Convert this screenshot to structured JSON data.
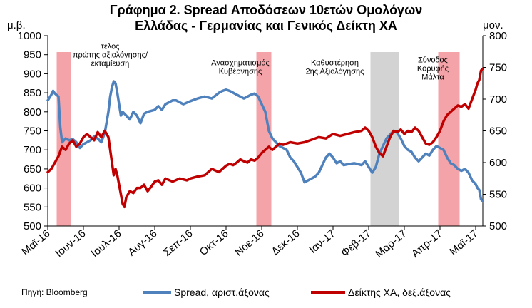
{
  "chart_data": {
    "type": "line",
    "title_lines": [
      "Γράφημα 2. Spread Αποδόσεων 10ετών Ομολόγων",
      "Ελλάδας - Γερμανίας και Γενικός Δείκτη ΧΑ"
    ],
    "left_unit": "μ.β.",
    "right_unit": "μον.",
    "source": "Πηγή: Bloomberg",
    "left_axis": {
      "min": 500,
      "max": 1000,
      "ticks": [
        500,
        550,
        600,
        650,
        700,
        750,
        800,
        850,
        900,
        950,
        1000
      ]
    },
    "right_axis": {
      "min": 500,
      "max": 800,
      "ticks": [
        500,
        550,
        600,
        650,
        700,
        750,
        800
      ]
    },
    "x_range": [
      0,
      12.2
    ],
    "x_ticks": [
      {
        "x": 0.0,
        "label": "Μαϊ-16"
      },
      {
        "x": 1.0,
        "label": "Ιουν-16"
      },
      {
        "x": 2.0,
        "label": "Ιουλ-16"
      },
      {
        "x": 3.0,
        "label": "Αυγ-16"
      },
      {
        "x": 4.0,
        "label": "Σεπ-16"
      },
      {
        "x": 5.0,
        "label": "Οκτ-16"
      },
      {
        "x": 6.0,
        "label": "Νοε-16"
      },
      {
        "x": 7.0,
        "label": "Δεκ-16"
      },
      {
        "x": 8.0,
        "label": "Ιαν-17"
      },
      {
        "x": 9.0,
        "label": "Φεβ-17"
      },
      {
        "x": 10.0,
        "label": "Μαρ-17"
      },
      {
        "x": 11.0,
        "label": "Απρ-17"
      },
      {
        "x": 12.0,
        "label": "Μαϊ-17"
      }
    ],
    "bands": [
      {
        "from": 0.25,
        "to": 0.66,
        "color": "#f4a3a8"
      },
      {
        "from": 5.85,
        "to": 6.27,
        "color": "#f4a3a8"
      },
      {
        "from": 9.05,
        "to": 9.85,
        "color": "#d3d3d3"
      },
      {
        "from": 10.95,
        "to": 11.55,
        "color": "#f4a3a8"
      }
    ],
    "annotations": [
      {
        "lines": [
          "τέλος",
          "πρώτης αξιολόγησης/",
          "εκταμίευση"
        ]
      },
      {
        "lines": [
          "Ανασχηματισμός",
          "Κυβέρνησης"
        ]
      },
      {
        "lines": [
          "Καθυστέρηση",
          "2ης Αξιολόγησης"
        ]
      },
      {
        "lines": [
          "Σύνοδος",
          "Κορυφής",
          "Μάλτα"
        ]
      }
    ],
    "series": [
      {
        "name": "Spread, αριστ.άξονας",
        "axis": "left",
        "color": "#4f81bd",
        "points": [
          [
            0.0,
            830
          ],
          [
            0.1,
            845
          ],
          [
            0.15,
            855
          ],
          [
            0.2,
            848
          ],
          [
            0.3,
            840
          ],
          [
            0.35,
            760
          ],
          [
            0.4,
            720
          ],
          [
            0.5,
            730
          ],
          [
            0.6,
            725
          ],
          [
            0.7,
            728
          ],
          [
            0.8,
            720
          ],
          [
            0.9,
            705
          ],
          [
            1.0,
            715
          ],
          [
            1.1,
            720
          ],
          [
            1.2,
            725
          ],
          [
            1.3,
            735
          ],
          [
            1.4,
            730
          ],
          [
            1.5,
            720
          ],
          [
            1.6,
            745
          ],
          [
            1.7,
            800
          ],
          [
            1.75,
            840
          ],
          [
            1.8,
            865
          ],
          [
            1.85,
            880
          ],
          [
            1.9,
            875
          ],
          [
            1.95,
            850
          ],
          [
            2.0,
            820
          ],
          [
            2.05,
            790
          ],
          [
            2.1,
            800
          ],
          [
            2.2,
            790
          ],
          [
            2.3,
            780
          ],
          [
            2.4,
            800
          ],
          [
            2.5,
            790
          ],
          [
            2.6,
            770
          ],
          [
            2.7,
            795
          ],
          [
            2.8,
            800
          ],
          [
            3.0,
            805
          ],
          [
            3.1,
            815
          ],
          [
            3.2,
            805
          ],
          [
            3.3,
            820
          ],
          [
            3.4,
            825
          ],
          [
            3.5,
            830
          ],
          [
            3.6,
            830
          ],
          [
            3.8,
            820
          ],
          [
            4.0,
            828
          ],
          [
            4.2,
            835
          ],
          [
            4.4,
            840
          ],
          [
            4.6,
            835
          ],
          [
            4.8,
            850
          ],
          [
            4.9,
            855
          ],
          [
            5.0,
            858
          ],
          [
            5.1,
            855
          ],
          [
            5.2,
            850
          ],
          [
            5.3,
            845
          ],
          [
            5.4,
            840
          ],
          [
            5.5,
            835
          ],
          [
            5.6,
            840
          ],
          [
            5.7,
            845
          ],
          [
            5.8,
            848
          ],
          [
            5.9,
            840
          ],
          [
            6.0,
            820
          ],
          [
            6.1,
            800
          ],
          [
            6.15,
            775
          ],
          [
            6.2,
            750
          ],
          [
            6.3,
            730
          ],
          [
            6.4,
            720
          ],
          [
            6.5,
            710
          ],
          [
            6.6,
            705
          ],
          [
            6.7,
            700
          ],
          [
            6.8,
            680
          ],
          [
            6.9,
            670
          ],
          [
            7.0,
            655
          ],
          [
            7.1,
            640
          ],
          [
            7.2,
            615
          ],
          [
            7.3,
            620
          ],
          [
            7.4,
            625
          ],
          [
            7.5,
            630
          ],
          [
            7.6,
            640
          ],
          [
            7.7,
            660
          ],
          [
            7.8,
            680
          ],
          [
            7.9,
            690
          ],
          [
            8.0,
            680
          ],
          [
            8.1,
            665
          ],
          [
            8.2,
            670
          ],
          [
            8.3,
            660
          ],
          [
            8.4,
            662
          ],
          [
            8.6,
            665
          ],
          [
            8.8,
            660
          ],
          [
            8.9,
            670
          ],
          [
            9.0,
            655
          ],
          [
            9.1,
            640
          ],
          [
            9.2,
            655
          ],
          [
            9.3,
            690
          ],
          [
            9.4,
            710
          ],
          [
            9.5,
            730
          ],
          [
            9.6,
            740
          ],
          [
            9.7,
            750
          ],
          [
            9.8,
            745
          ],
          [
            9.9,
            730
          ],
          [
            10.0,
            710
          ],
          [
            10.1,
            700
          ],
          [
            10.2,
            695
          ],
          [
            10.3,
            680
          ],
          [
            10.4,
            670
          ],
          [
            10.5,
            680
          ],
          [
            10.6,
            690
          ],
          [
            10.7,
            685
          ],
          [
            10.8,
            700
          ],
          [
            10.9,
            710
          ],
          [
            11.0,
            705
          ],
          [
            11.1,
            700
          ],
          [
            11.2,
            680
          ],
          [
            11.3,
            665
          ],
          [
            11.4,
            660
          ],
          [
            11.5,
            650
          ],
          [
            11.6,
            645
          ],
          [
            11.7,
            650
          ],
          [
            11.8,
            640
          ],
          [
            11.9,
            620
          ],
          [
            12.0,
            610
          ],
          [
            12.05,
            600
          ],
          [
            12.1,
            595
          ],
          [
            12.15,
            570
          ],
          [
            12.2,
            565
          ]
        ]
      },
      {
        "name": "Δείκτης ΧΑ, δεξ.άξονας",
        "axis": "right",
        "color": "#c00000",
        "points": [
          [
            0.0,
            585
          ],
          [
            0.1,
            590
          ],
          [
            0.2,
            600
          ],
          [
            0.3,
            610
          ],
          [
            0.4,
            625
          ],
          [
            0.5,
            620
          ],
          [
            0.6,
            630
          ],
          [
            0.7,
            635
          ],
          [
            0.8,
            625
          ],
          [
            0.9,
            630
          ],
          [
            1.0,
            640
          ],
          [
            1.1,
            645
          ],
          [
            1.2,
            640
          ],
          [
            1.3,
            635
          ],
          [
            1.4,
            648
          ],
          [
            1.5,
            640
          ],
          [
            1.6,
            650
          ],
          [
            1.7,
            640
          ],
          [
            1.75,
            620
          ],
          [
            1.8,
            600
          ],
          [
            1.85,
            580
          ],
          [
            1.9,
            590
          ],
          [
            1.95,
            580
          ],
          [
            2.0,
            565
          ],
          [
            2.05,
            550
          ],
          [
            2.1,
            535
          ],
          [
            2.15,
            530
          ],
          [
            2.2,
            545
          ],
          [
            2.3,
            555
          ],
          [
            2.4,
            552
          ],
          [
            2.5,
            560
          ],
          [
            2.6,
            560
          ],
          [
            2.7,
            565
          ],
          [
            2.8,
            555
          ],
          [
            2.9,
            562
          ],
          [
            3.0,
            570
          ],
          [
            3.1,
            572
          ],
          [
            3.2,
            565
          ],
          [
            3.3,
            575
          ],
          [
            3.5,
            570
          ],
          [
            3.7,
            575
          ],
          [
            3.9,
            572
          ],
          [
            4.0,
            575
          ],
          [
            4.2,
            578
          ],
          [
            4.4,
            580
          ],
          [
            4.6,
            590
          ],
          [
            4.8,
            585
          ],
          [
            5.0,
            595
          ],
          [
            5.1,
            598
          ],
          [
            5.2,
            596
          ],
          [
            5.3,
            600
          ],
          [
            5.4,
            605
          ],
          [
            5.5,
            602
          ],
          [
            5.6,
            600
          ],
          [
            5.7,
            605
          ],
          [
            5.8,
            603
          ],
          [
            5.9,
            608
          ],
          [
            6.0,
            615
          ],
          [
            6.1,
            620
          ],
          [
            6.2,
            625
          ],
          [
            6.3,
            620
          ],
          [
            6.4,
            625
          ],
          [
            6.5,
            630
          ],
          [
            6.6,
            628
          ],
          [
            6.8,
            632
          ],
          [
            7.0,
            630
          ],
          [
            7.2,
            632
          ],
          [
            7.4,
            636
          ],
          [
            7.6,
            640
          ],
          [
            7.8,
            638
          ],
          [
            8.0,
            645
          ],
          [
            8.2,
            642
          ],
          [
            8.4,
            645
          ],
          [
            8.6,
            648
          ],
          [
            8.8,
            650
          ],
          [
            8.9,
            655
          ],
          [
            9.0,
            650
          ],
          [
            9.1,
            640
          ],
          [
            9.2,
            625
          ],
          [
            9.3,
            615
          ],
          [
            9.4,
            610
          ],
          [
            9.5,
            625
          ],
          [
            9.6,
            640
          ],
          [
            9.7,
            650
          ],
          [
            9.8,
            648
          ],
          [
            9.9,
            652
          ],
          [
            10.0,
            645
          ],
          [
            10.1,
            650
          ],
          [
            10.2,
            648
          ],
          [
            10.3,
            655
          ],
          [
            10.4,
            650
          ],
          [
            10.5,
            640
          ],
          [
            10.6,
            630
          ],
          [
            10.7,
            628
          ],
          [
            10.8,
            632
          ],
          [
            10.9,
            640
          ],
          [
            11.0,
            650
          ],
          [
            11.1,
            665
          ],
          [
            11.2,
            675
          ],
          [
            11.3,
            680
          ],
          [
            11.4,
            685
          ],
          [
            11.5,
            690
          ],
          [
            11.6,
            688
          ],
          [
            11.7,
            692
          ],
          [
            11.8,
            685
          ],
          [
            11.9,
            700
          ],
          [
            12.0,
            715
          ],
          [
            12.05,
            725
          ],
          [
            12.1,
            730
          ],
          [
            12.15,
            745
          ],
          [
            12.2,
            748
          ]
        ]
      }
    ]
  }
}
